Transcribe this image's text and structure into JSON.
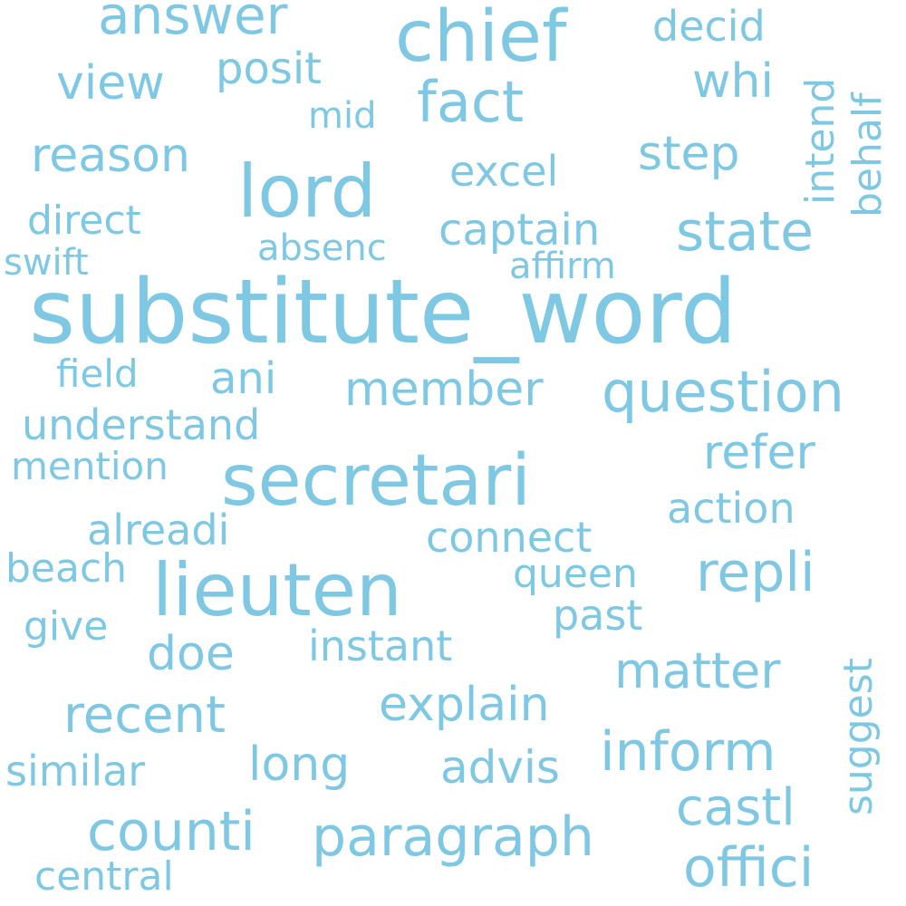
{
  "style": {
    "text_color": "#7ec8e3",
    "background": "#ffffff"
  },
  "words": [
    "substitute_word",
    "secretari",
    "lieuten",
    "chief",
    "lord",
    "question",
    "paragraph",
    "counti",
    "inform",
    "repli",
    "offici",
    "state",
    "castl",
    "fact",
    "answer",
    "recent",
    "member",
    "captain",
    "explain",
    "matter",
    "refer",
    "reason",
    "view",
    "whi",
    "understand",
    "step",
    "decid",
    "connect",
    "posit",
    "ani",
    "long",
    "alreadi",
    "action",
    "doe",
    "advis",
    "instant",
    "similar",
    "excel",
    "direct",
    "past",
    "queen",
    "central",
    "mention",
    "field",
    "beach",
    "give",
    "absenc",
    "affirm",
    "swift",
    "mid",
    "intend",
    "behalf",
    "suggest"
  ]
}
